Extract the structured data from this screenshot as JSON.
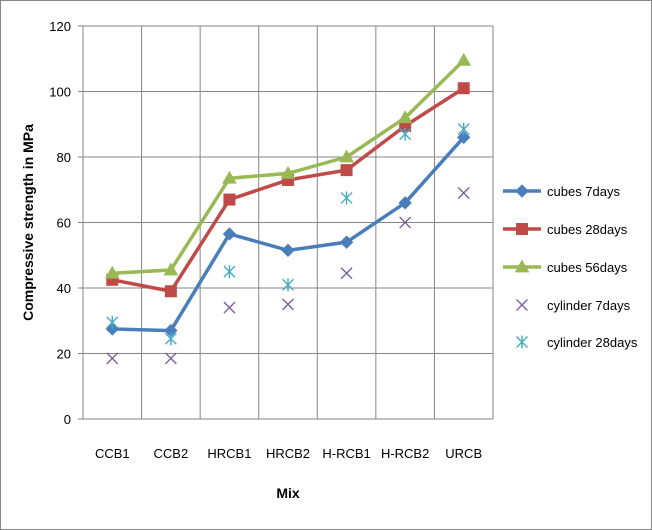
{
  "chart_data": {
    "type": "line",
    "xlabel": "Mix",
    "ylabel": "Compressive strength in MPa",
    "ylim": [
      0,
      120
    ],
    "yticks": [
      0,
      20,
      40,
      60,
      80,
      100,
      120
    ],
    "grid": true,
    "legend_position": "right",
    "categories": [
      "CCB1",
      "CCB2",
      "HRCB1",
      "HRCB2",
      "H-RCB1",
      "H-RCB2",
      "URCB"
    ],
    "series": [
      {
        "name": "cubes 7days",
        "style": "line",
        "marker": "diamond",
        "color": "#4a7ebb",
        "values": [
          27.5,
          27,
          56.5,
          51.5,
          54,
          66,
          86
        ]
      },
      {
        "name": "cubes 28days",
        "style": "line",
        "marker": "square",
        "color": "#be4b48",
        "values": [
          42.5,
          39,
          67,
          73,
          76,
          89.5,
          101
        ]
      },
      {
        "name": "cubes 56days",
        "style": "line",
        "marker": "triangle",
        "color": "#98b954",
        "values": [
          44.5,
          45.5,
          73.5,
          75,
          80,
          92,
          109.5
        ]
      },
      {
        "name": "cylinder 7days",
        "style": "markers",
        "marker": "x",
        "color": "#7d60a0",
        "values": [
          18.5,
          18.5,
          34,
          35,
          44.5,
          60,
          69
        ]
      },
      {
        "name": "cylinder 28days",
        "style": "markers",
        "marker": "asterisk",
        "color": "#46aac5",
        "values": [
          29.5,
          24.5,
          45,
          41,
          67.5,
          87,
          88.5
        ]
      }
    ]
  }
}
